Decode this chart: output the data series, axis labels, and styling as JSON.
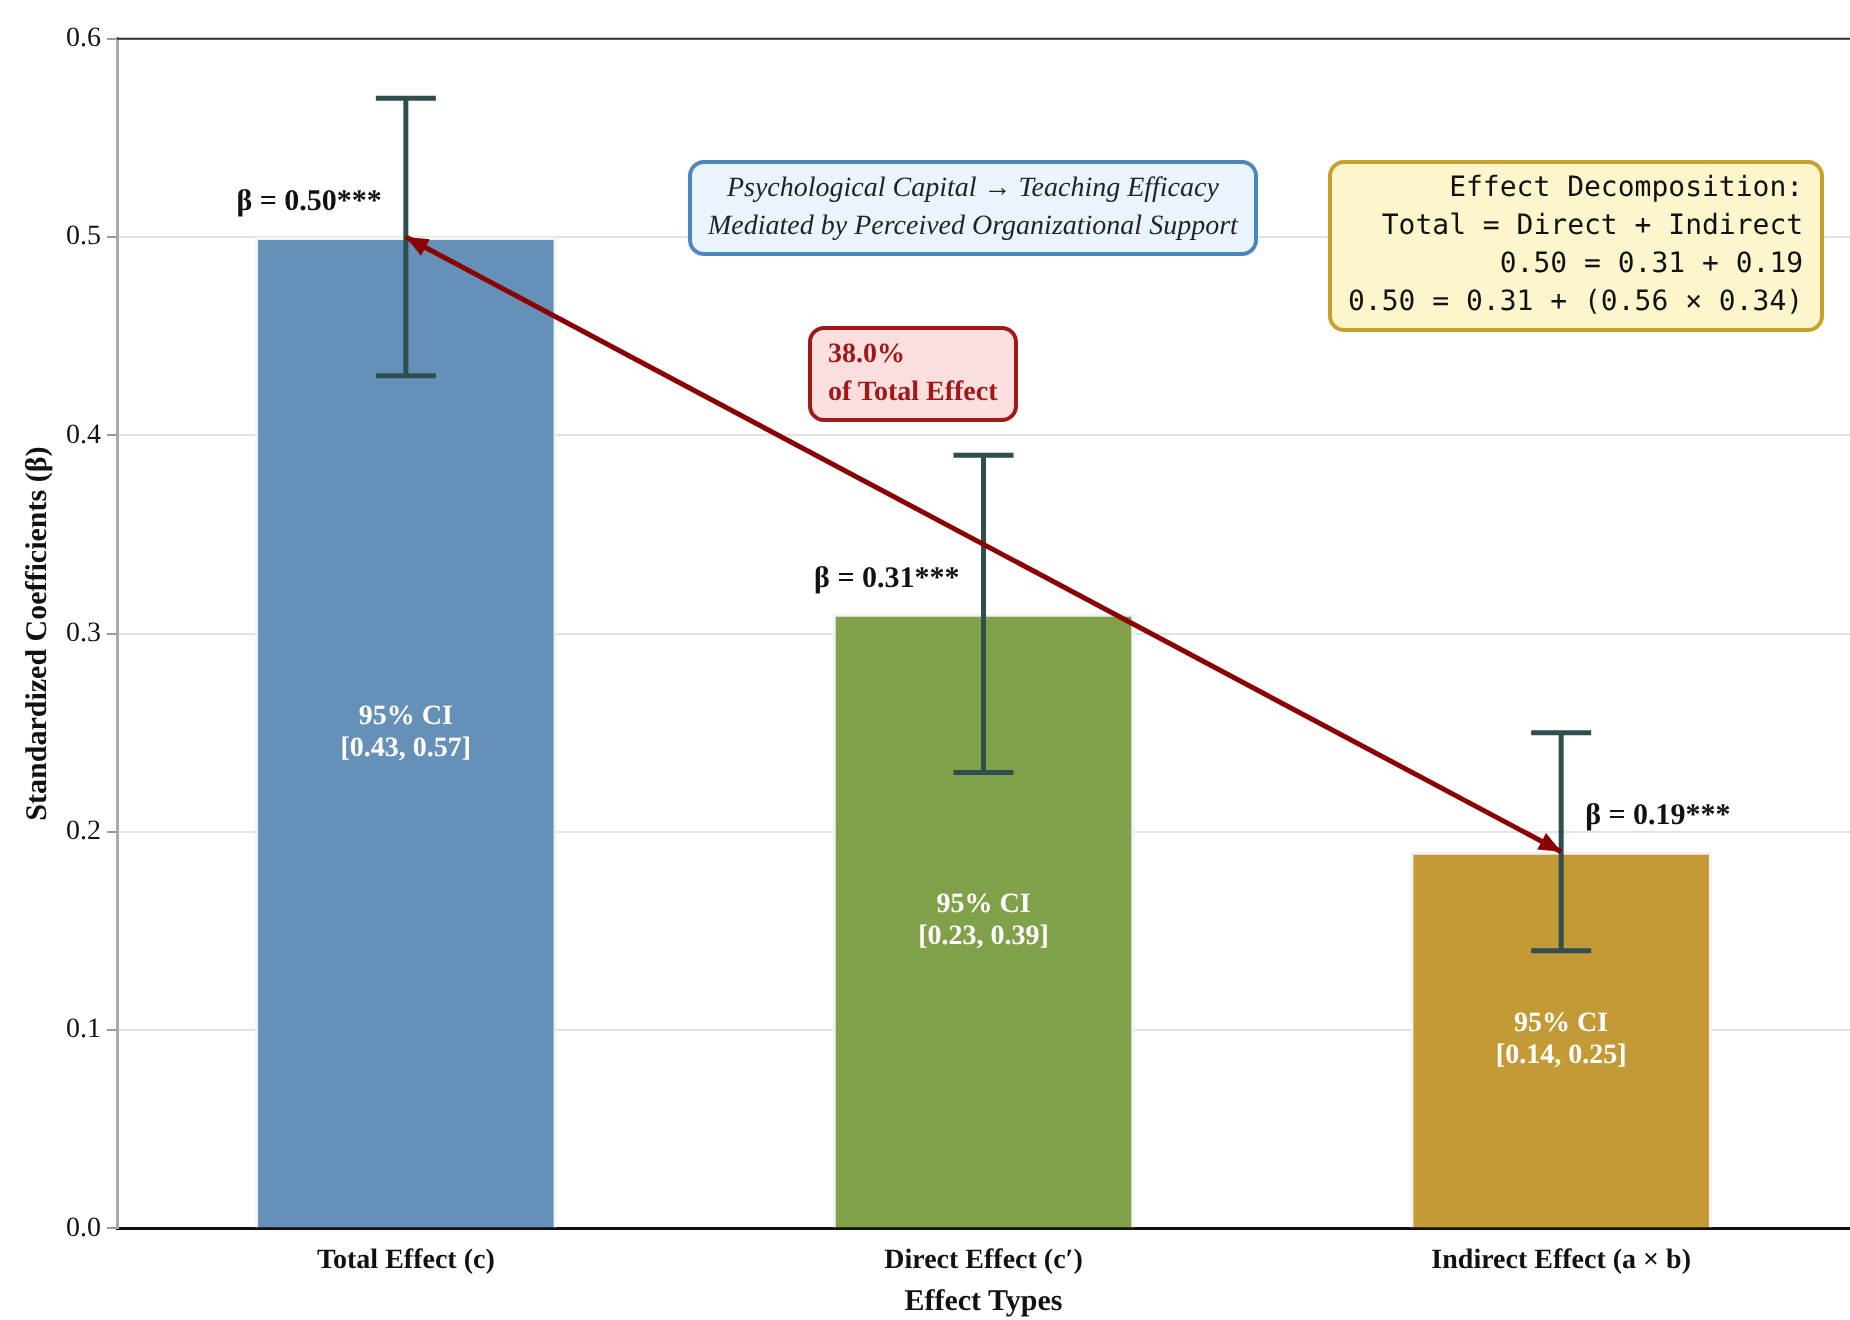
{
  "chart_data": {
    "type": "bar",
    "xlabel": "Effect Types",
    "ylabel": "Standardized Coefficients (β)",
    "categories": [
      "Total Effect (c)",
      "Direct Effect (c′)",
      "Indirect Effect (a × b)"
    ],
    "values": [
      0.5,
      0.31,
      0.19
    ],
    "colors": [
      "#6590b8",
      "#80a04a",
      "#c49a36"
    ],
    "errors": [
      [
        0.43,
        0.57
      ],
      [
        0.23,
        0.39
      ],
      [
        0.14,
        0.25
      ]
    ],
    "value_labels": [
      "β = 0.50***",
      "β = 0.31***",
      "β = 0.19***"
    ],
    "ylim": [
      0,
      0.6
    ],
    "yticks": [
      {
        "value": 0,
        "label": "0.0"
      },
      0.1,
      0.2,
      0.3,
      0.4,
      0.5,
      0.6
    ],
    "grid": "y",
    "legend": false,
    "annotations": [
      "95% CI\n[0.43, 0.57]",
      "95% CI\n[0.23, 0.39]",
      "95% CI\n[0.14, 0.25]",
      "Psychological Capital → Teaching Efficacy\nMediated by Perceived Organizational Support",
      "Effect Decomposition:\nTotal = Direct + Indirect\n0.50 = 0.31 + 0.19\n0.50 = 0.31 + (0.56 × 0.34)",
      "38.0%\nof Total Effect"
    ]
  }
}
